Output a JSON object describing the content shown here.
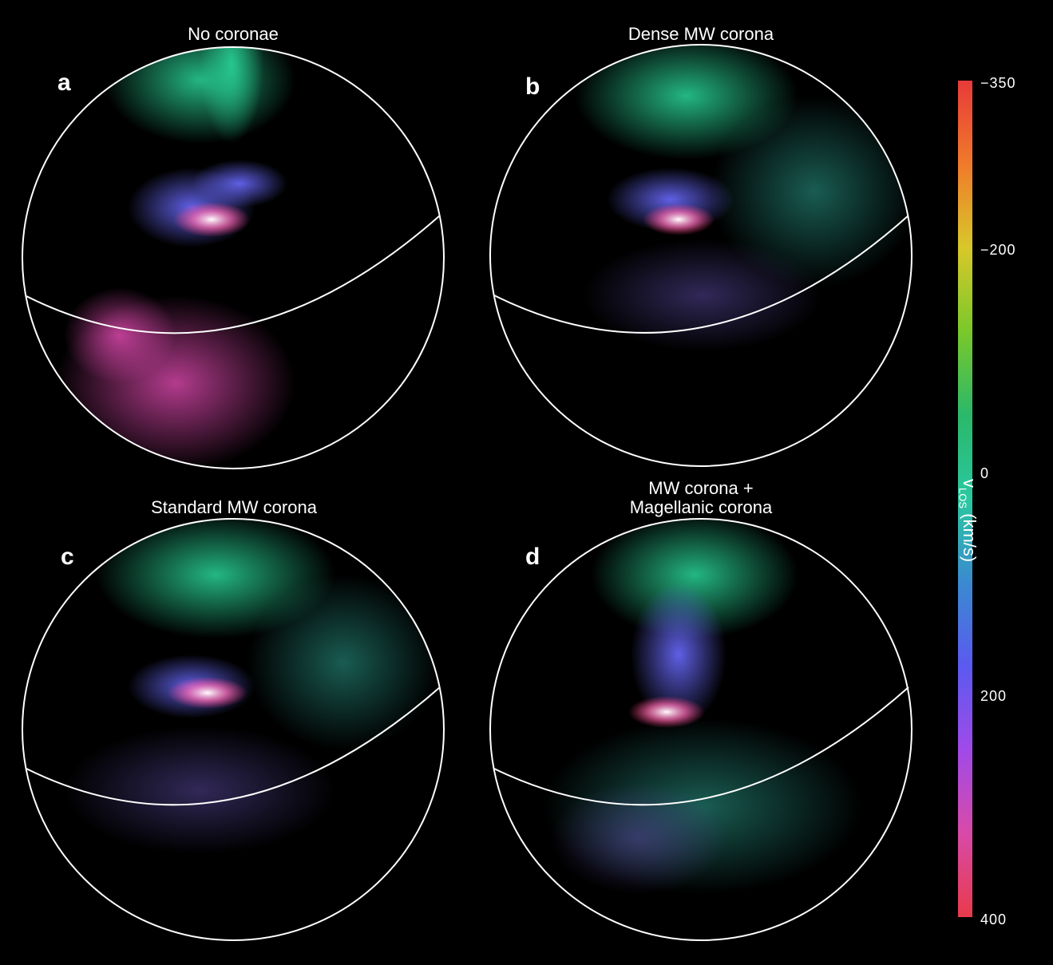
{
  "panels": [
    {
      "letter": "a",
      "title": "No coronae"
    },
    {
      "letter": "b",
      "title": "Dense MW corona"
    },
    {
      "letter": "c",
      "title": "Standard MW corona"
    },
    {
      "letter": "d",
      "title_line1": "MW corona +",
      "title_line2": "Magellanic corona"
    }
  ],
  "colorbar": {
    "ticks": [
      "−350",
      "−200",
      "0",
      "200",
      "400"
    ],
    "label_main": "v",
    "label_sub": "LOS",
    "label_unit": "(km/s)",
    "colors": [
      "#e83a3a",
      "#f07a2a",
      "#d8c82a",
      "#7ac82a",
      "#2ab86a",
      "#2ac8a0",
      "#3a8ad0",
      "#5a5af0",
      "#a04ae8",
      "#d84aa8",
      "#e83a4a"
    ]
  }
}
